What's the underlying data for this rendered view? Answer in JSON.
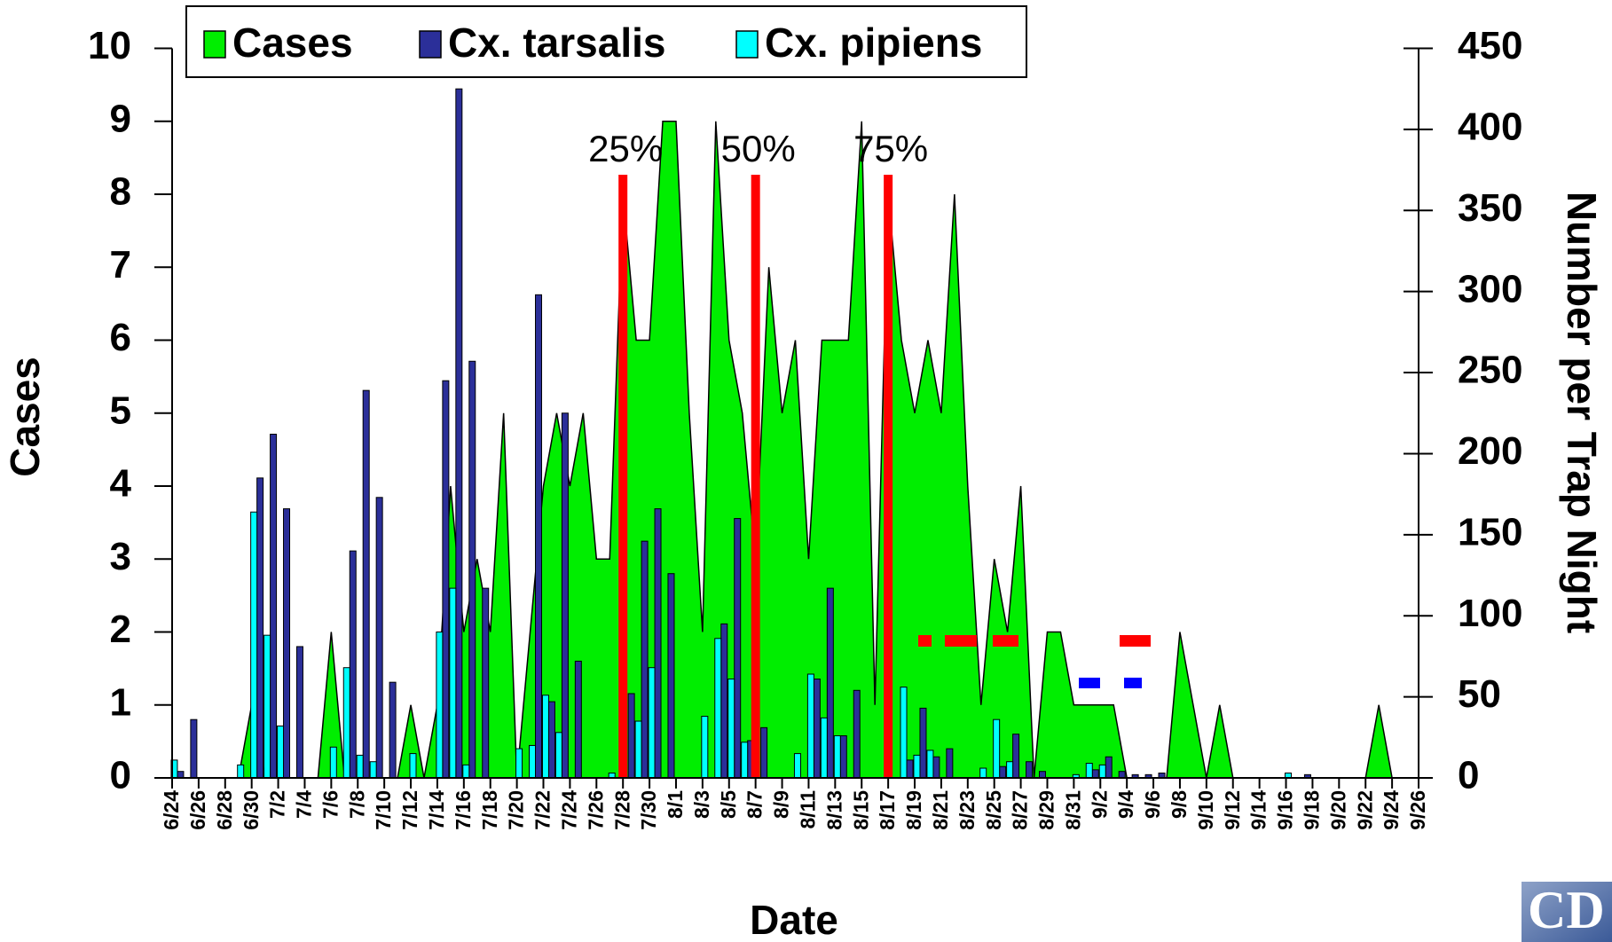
{
  "chart_data": {
    "type": "combo",
    "xlabel": "Date",
    "ylabel": "Cases",
    "y2label": "Number per Trap Night",
    "logo_text": "CD",
    "categories": [
      "6/24",
      null,
      "6/26",
      null,
      "6/28",
      null,
      "6/30",
      null,
      "7/2",
      null,
      "7/4",
      null,
      "7/6",
      null,
      "7/8",
      null,
      "7/10",
      null,
      "7/12",
      null,
      "7/14",
      null,
      "7/16",
      null,
      "7/18",
      null,
      "7/20",
      null,
      "7/22",
      null,
      "7/24",
      null,
      "7/26",
      null,
      "7/28",
      null,
      "7/30",
      null,
      "8/1",
      null,
      "8/3",
      null,
      "8/5",
      null,
      "8/7",
      null,
      "8/9",
      null,
      "8/11",
      null,
      "8/13",
      null,
      "8/15",
      null,
      "8/17",
      null,
      "8/19",
      null,
      "8/21",
      null,
      "8/23",
      null,
      "8/25",
      null,
      "8/27",
      null,
      "8/29",
      null,
      "8/31",
      null,
      "9/2",
      null,
      "9/4",
      null,
      "9/6",
      null,
      "9/8",
      null,
      "9/10",
      null,
      "9/12",
      null,
      "9/14",
      null,
      "9/16",
      null,
      "9/18",
      null,
      "9/20",
      null,
      "9/22",
      null,
      "9/24",
      null,
      "9/26"
    ],
    "series": [
      {
        "name": "Cases",
        "type": "area",
        "color": "#00ee00",
        "axis": "y",
        "values": [
          0,
          0,
          0,
          0,
          0,
          0,
          1,
          0,
          0,
          0,
          0,
          0,
          2,
          0,
          0,
          0,
          0,
          0,
          1,
          0,
          1,
          4,
          2,
          3,
          2,
          5,
          0,
          2,
          4,
          5,
          4,
          5,
          3,
          3,
          8,
          6,
          6,
          9,
          9,
          5,
          2,
          9,
          6,
          5,
          3,
          7,
          5,
          6,
          3,
          6,
          6,
          6,
          9,
          1,
          8,
          6,
          5,
          6,
          5,
          8,
          4,
          1,
          3,
          2,
          4,
          0,
          2,
          2,
          1,
          1,
          1,
          1,
          0,
          0,
          0,
          0,
          2,
          1,
          0,
          1,
          0,
          0,
          0,
          0,
          0,
          0,
          0,
          0,
          0,
          0,
          0,
          1,
          0,
          0,
          0
        ]
      },
      {
        "name": "Cx. tarsalis",
        "type": "bar",
        "color": "#2b2f99",
        "axis": "y2",
        "values": [
          0,
          4,
          36,
          0,
          0,
          0,
          0,
          185,
          212,
          166,
          81,
          0,
          0,
          0,
          140,
          239,
          173,
          59,
          0,
          0,
          0,
          245,
          425,
          257,
          117,
          0,
          0,
          0,
          298,
          47,
          225,
          72,
          0,
          0,
          0,
          52,
          146,
          166,
          126,
          0,
          0,
          0,
          95,
          160,
          23,
          31,
          0,
          0,
          0,
          61,
          117,
          26,
          54,
          0,
          0,
          0,
          11,
          43,
          13,
          18,
          0,
          0,
          0,
          7,
          27,
          10,
          4,
          0,
          0,
          0,
          5,
          13,
          4,
          2,
          2,
          3,
          0,
          0,
          0,
          0,
          0,
          0,
          0,
          0,
          0,
          0,
          2,
          0,
          0,
          0,
          0,
          0,
          0,
          0,
          0
        ]
      },
      {
        "name": "Cx. pipiens",
        "type": "bar",
        "color": "#00ffff",
        "axis": "y2",
        "values": [
          0,
          11,
          0,
          0,
          0,
          0,
          8,
          164,
          88,
          32,
          0,
          0,
          0,
          19,
          68,
          14,
          10,
          0,
          0,
          15,
          0,
          90,
          117,
          8,
          0,
          0,
          0,
          18,
          20,
          51,
          28,
          0,
          0,
          0,
          3,
          0,
          35,
          68,
          0,
          0,
          0,
          38,
          86,
          61,
          22,
          0,
          0,
          0,
          15,
          64,
          37,
          26,
          0,
          0,
          0,
          0,
          56,
          14,
          17,
          0,
          0,
          0,
          6,
          36,
          10,
          0,
          0,
          0,
          0,
          2,
          9,
          8,
          0,
          0,
          0,
          0,
          0,
          0,
          0,
          0,
          0,
          0,
          0,
          0,
          0,
          3,
          0,
          0,
          0,
          0,
          0,
          0,
          0,
          0,
          0
        ]
      }
    ],
    "annotations": [
      {
        "label": "25%",
        "x": "7/28",
        "color": "#ff0000"
      },
      {
        "label": "50%",
        "x": "8/7",
        "color": "#ff0000"
      },
      {
        "label": "75%",
        "x": "8/17",
        "color": "#ff0000"
      }
    ],
    "ylim": [
      0,
      10
    ],
    "yticks": [
      0,
      1,
      2,
      3,
      4,
      5,
      6,
      7,
      8,
      9,
      10
    ],
    "y2lim": [
      0,
      450
    ],
    "y2ticks": [
      0,
      50,
      100,
      150,
      200,
      250,
      300,
      350,
      400,
      450
    ],
    "legend": "top-left"
  }
}
